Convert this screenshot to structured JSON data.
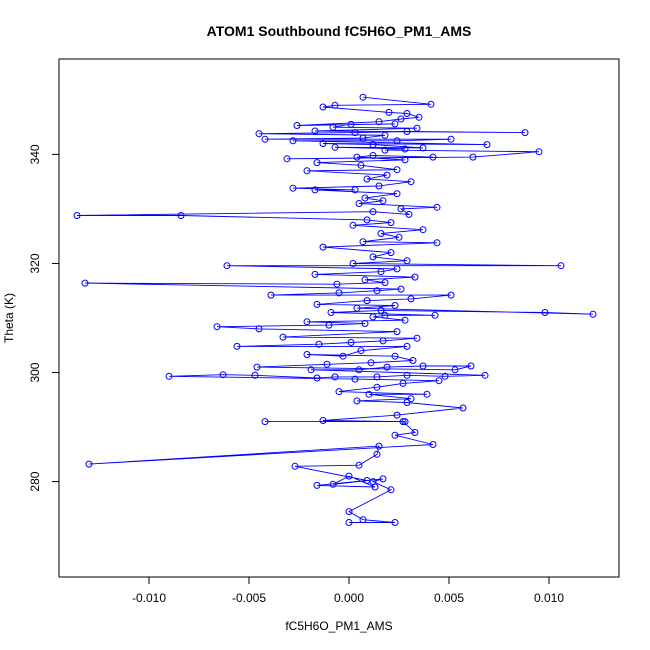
{
  "chart_data": {
    "type": "line",
    "title": "ATOM1 Southbound fC5H6O_PM1_AMS",
    "xlabel": "fC5H6O_PM1_AMS",
    "ylabel": "Theta (K)",
    "xlim": [
      -0.0145,
      0.0135
    ],
    "ylim": [
      262.5,
      357.5
    ],
    "x_ticks": [
      -0.01,
      -0.005,
      0.0,
      0.005,
      0.01
    ],
    "x_tick_labels": [
      "-0.010",
      "-0.005",
      "0.000",
      "0.005",
      "0.010"
    ],
    "y_ticks": [
      280,
      300,
      320,
      340
    ],
    "y_tick_labels": [
      "280",
      "300",
      "320",
      "340"
    ],
    "grid": false,
    "marker": "open-circle",
    "series": [
      {
        "color": "#0000ff",
        "points": [
          [
            0.0,
            272.5
          ],
          [
            0.0023,
            272.5
          ],
          [
            0.0007,
            273.0
          ],
          [
            0.0,
            274.5
          ],
          [
            0.0021,
            278.5
          ],
          [
            0.0012,
            280.0
          ],
          [
            0.0017,
            280.5
          ],
          [
            -0.0008,
            279.5
          ],
          [
            0.0,
            281.0
          ],
          [
            0.0013,
            279.0
          ],
          [
            -0.0016,
            279.3
          ],
          [
            0.0009,
            280.2
          ],
          [
            -0.0027,
            282.8
          ],
          [
            0.0005,
            283.0
          ],
          [
            0.0014,
            285.0
          ],
          [
            0.0015,
            286.5
          ],
          [
            -0.013,
            283.2
          ],
          [
            0.0042,
            286.8
          ],
          [
            0.0023,
            288.5
          ],
          [
            0.0033,
            289.0
          ],
          [
            0.0027,
            291.0
          ],
          [
            -0.0042,
            291.0
          ],
          [
            0.0028,
            291.0
          ],
          [
            -0.0013,
            291.2
          ],
          [
            0.0024,
            292.2
          ],
          [
            0.0057,
            293.5
          ],
          [
            0.0029,
            294.5
          ],
          [
            0.0004,
            294.8
          ],
          [
            0.0031,
            295.2
          ],
          [
            0.001,
            296.0
          ],
          [
            0.0039,
            296.0
          ],
          [
            -0.0005,
            296.5
          ],
          [
            0.0014,
            297.3
          ],
          [
            0.0027,
            298.0
          ],
          [
            0.0045,
            298.5
          ],
          [
            0.0003,
            298.8
          ],
          [
            -0.009,
            299.3
          ],
          [
            -0.0063,
            299.6
          ],
          [
            -0.0047,
            299.5
          ],
          [
            -0.0016,
            299.0
          ],
          [
            -0.0007,
            299.2
          ],
          [
            0.0014,
            299.2
          ],
          [
            0.0029,
            299.5
          ],
          [
            0.0048,
            299.3
          ],
          [
            0.0068,
            299.5
          ],
          [
            -0.0019,
            300.5
          ],
          [
            0.0005,
            300.5
          ],
          [
            0.0019,
            301.0
          ],
          [
            0.0037,
            301.2
          ],
          [
            0.0061,
            301.2
          ],
          [
            0.0053,
            300.5
          ],
          [
            -0.0046,
            301.0
          ],
          [
            -0.0011,
            301.5
          ],
          [
            0.0011,
            301.8
          ],
          [
            0.0032,
            302.2
          ],
          [
            0.0023,
            303.0
          ],
          [
            -0.0021,
            303.3
          ],
          [
            -0.0003,
            303.0
          ],
          [
            0.0006,
            304.0
          ],
          [
            0.0029,
            304.8
          ],
          [
            -0.0056,
            304.8
          ],
          [
            -0.0015,
            305.2
          ],
          [
            0.0001,
            305.5
          ],
          [
            0.0017,
            305.8
          ],
          [
            0.0034,
            306.3
          ],
          [
            -0.0033,
            306.5
          ],
          [
            0.0024,
            307.5
          ],
          [
            -0.0045,
            308.0
          ],
          [
            -0.0066,
            308.4
          ],
          [
            -0.001,
            308.7
          ],
          [
            0.0008,
            309.0
          ],
          [
            -0.0021,
            309.3
          ],
          [
            0.0028,
            309.6
          ],
          [
            0.0012,
            310.2
          ],
          [
            0.0018,
            310.5
          ],
          [
            0.0043,
            310.5
          ],
          [
            -0.0009,
            311.0
          ],
          [
            0.0016,
            311.4
          ],
          [
            0.0098,
            311.0
          ],
          [
            0.0122,
            310.7
          ],
          [
            0.0004,
            311.8
          ],
          [
            0.0023,
            312.3
          ],
          [
            -0.0016,
            312.5
          ],
          [
            0.0009,
            313.2
          ],
          [
            0.0031,
            313.5
          ],
          [
            0.0051,
            314.2
          ],
          [
            -0.0039,
            314.2
          ],
          [
            -0.0005,
            314.6
          ],
          [
            0.0014,
            315.0
          ],
          [
            0.0026,
            315.3
          ],
          [
            -0.0132,
            316.4
          ],
          [
            -0.0006,
            316.2
          ],
          [
            0.0018,
            316.5
          ],
          [
            0.0008,
            317.0
          ],
          [
            0.0033,
            317.5
          ],
          [
            -0.0017,
            318.0
          ],
          [
            0.0016,
            318.5
          ],
          [
            0.0024,
            319.0
          ],
          [
            -0.0061,
            319.6
          ],
          [
            0.0106,
            319.6
          ],
          [
            0.0002,
            320.0
          ],
          [
            0.0029,
            320.5
          ],
          [
            0.0012,
            321.2
          ],
          [
            0.0021,
            322.0
          ],
          [
            -0.0013,
            323.0
          ],
          [
            0.0044,
            323.8
          ],
          [
            0.0007,
            324.0
          ],
          [
            0.0025,
            324.8
          ],
          [
            0.0016,
            325.5
          ],
          [
            0.0037,
            326.2
          ],
          [
            0.0002,
            327.0
          ],
          [
            0.0021,
            327.5
          ],
          [
            0.0009,
            328.0
          ],
          [
            -0.0084,
            328.8
          ],
          [
            -0.0136,
            328.8
          ],
          [
            0.0012,
            329.5
          ],
          [
            0.003,
            329.0
          ],
          [
            0.0026,
            330.0
          ],
          [
            0.0044,
            330.3
          ],
          [
            0.0005,
            331.0
          ],
          [
            0.0017,
            331.5
          ],
          [
            0.0008,
            332.0
          ],
          [
            0.0024,
            332.8
          ],
          [
            -0.0017,
            333.5
          ],
          [
            0.0003,
            333.5
          ],
          [
            -0.0028,
            333.8
          ],
          [
            0.0015,
            334.2
          ],
          [
            0.0031,
            335.0
          ],
          [
            0.0009,
            335.5
          ],
          [
            0.0019,
            336.2
          ],
          [
            -0.0021,
            337.0
          ],
          [
            0.0024,
            337.2
          ],
          [
            0.0006,
            338.0
          ],
          [
            -0.0016,
            338.5
          ],
          [
            0.0028,
            339.0
          ],
          [
            0.0004,
            339.5
          ],
          [
            0.0012,
            339.8
          ],
          [
            0.0042,
            339.5
          ],
          [
            -0.0031,
            339.2
          ],
          [
            0.0062,
            339.5
          ],
          [
            0.0095,
            340.5
          ],
          [
            0.0018,
            340.8
          ],
          [
            0.0028,
            341.0
          ],
          [
            -0.0007,
            341.3
          ],
          [
            0.0037,
            341.2
          ],
          [
            0.0012,
            341.8
          ],
          [
            -0.0013,
            342.0
          ],
          [
            0.0069,
            341.8
          ],
          [
            -0.0028,
            342.5
          ],
          [
            0.0024,
            342.5
          ],
          [
            0.0051,
            342.8
          ],
          [
            -0.0042,
            342.8
          ],
          [
            0.0007,
            343.0
          ],
          [
            0.0018,
            343.5
          ],
          [
            -0.0045,
            343.8
          ],
          [
            0.0003,
            344.0
          ],
          [
            0.0029,
            344.2
          ],
          [
            0.0088,
            344.0
          ],
          [
            -0.0017,
            344.3
          ],
          [
            0.0034,
            344.8
          ],
          [
            -0.0008,
            345.0
          ],
          [
            0.0001,
            345.5
          ],
          [
            0.0023,
            345.6
          ],
          [
            -0.0026,
            345.3
          ],
          [
            0.0015,
            346.0
          ],
          [
            0.0026,
            346.5
          ],
          [
            0.0035,
            346.8
          ],
          [
            0.0029,
            347.5
          ],
          [
            0.002,
            347.7
          ],
          [
            -0.0013,
            348.7
          ],
          [
            -0.0007,
            349.0
          ],
          [
            0.0041,
            349.2
          ],
          [
            0.0007,
            350.5
          ]
        ]
      }
    ]
  }
}
